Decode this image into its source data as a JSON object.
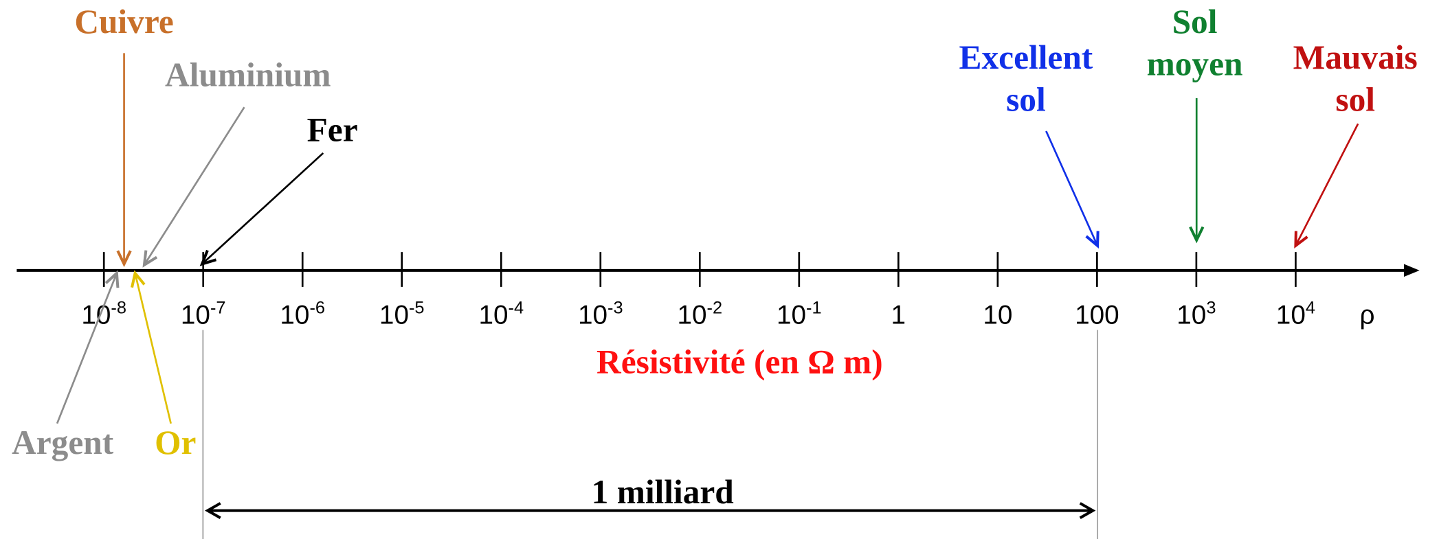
{
  "axis": {
    "symbol": "ρ",
    "label": "Résistivité (en Ω m)",
    "ticks": [
      {
        "base": "10",
        "exp": "-8"
      },
      {
        "base": "10",
        "exp": "-7"
      },
      {
        "base": "10",
        "exp": "-6"
      },
      {
        "base": "10",
        "exp": "-5"
      },
      {
        "base": "10",
        "exp": "-4"
      },
      {
        "base": "10",
        "exp": "-3"
      },
      {
        "base": "10",
        "exp": "-2"
      },
      {
        "base": "10",
        "exp": "-1"
      },
      {
        "base": "1"
      },
      {
        "base": "10"
      },
      {
        "base": "100"
      },
      {
        "base": "10",
        "exp": "3"
      },
      {
        "base": "10",
        "exp": "4"
      }
    ]
  },
  "materials": [
    {
      "lines": [
        "Cuivre"
      ],
      "color": "#c8702a"
    },
    {
      "lines": [
        "Aluminium"
      ],
      "color": "#8c8c8c"
    },
    {
      "lines": [
        "Fer"
      ],
      "color": "#000000"
    },
    {
      "lines": [
        "Argent"
      ],
      "color": "#8c8c8c"
    },
    {
      "lines": [
        "Or"
      ],
      "color": "#e0c000"
    },
    {
      "lines": [
        "Excellent",
        "sol"
      ],
      "color": "#1030e8"
    },
    {
      "lines": [
        "Sol",
        "moyen"
      ],
      "color": "#108030"
    },
    {
      "lines": [
        "Mauvais",
        "sol"
      ],
      "color": "#c01010"
    }
  ],
  "span": {
    "label": "1 milliard"
  }
}
